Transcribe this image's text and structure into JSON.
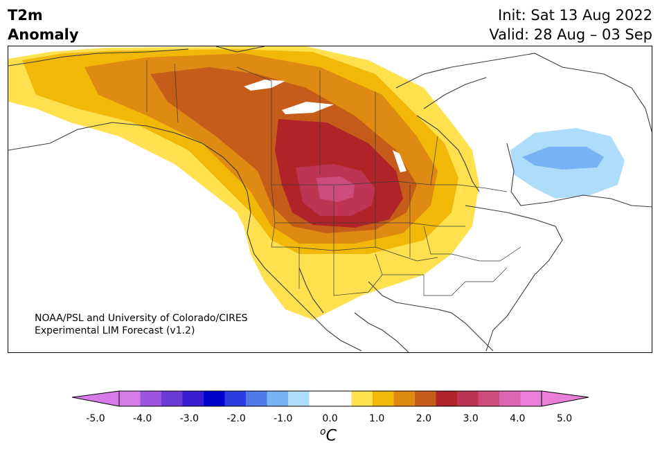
{
  "header": {
    "title_line1": "T2m",
    "title_line2": "Anomaly",
    "init": "Init: Sat 13 Aug 2022",
    "valid": "Valid: 28 Aug – 03 Sep"
  },
  "map": {
    "region": "North America",
    "credit_line1": "NOAA/PSL and University of Colorado/CIRES",
    "credit_line2": "Experimental LIM Forecast (v1.2)"
  },
  "colorbar": {
    "unit_base": "C",
    "unit_sup": "o",
    "ticks": [
      "-5.0",
      "-4.0",
      "-3.0",
      "-2.0",
      "-1.0",
      "0.0",
      "1.0",
      "2.0",
      "3.0",
      "4.0",
      "5.0"
    ],
    "colors": [
      "#d77be8",
      "#9d55e0",
      "#6a3ad9",
      "#3a1dd2",
      "#0000cc",
      "#2b3fe0",
      "#4f7ae6",
      "#78b2f4",
      "#aedcfb",
      "#ffffff",
      "#ffffff",
      "#ffe04f",
      "#f2b807",
      "#df8a12",
      "#c65c1a",
      "#b02429",
      "#bd3552",
      "#cc4d7c",
      "#dd66b0",
      "#ea7fd9"
    ],
    "under_color": "#d77be8",
    "over_color": "#ea7fd9"
  }
}
